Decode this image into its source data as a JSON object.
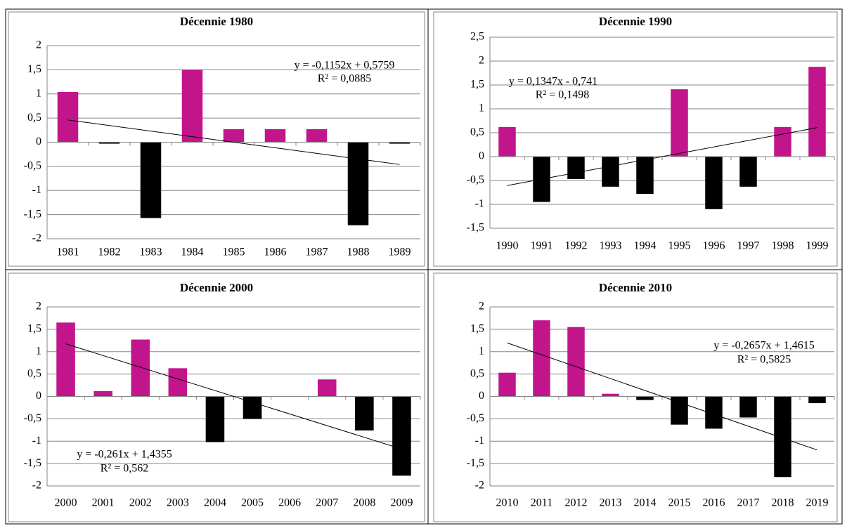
{
  "chart_data": [
    {
      "type": "bar",
      "title": "Décennie 1980",
      "categories": [
        "1981",
        "1982",
        "1983",
        "1984",
        "1985",
        "1986",
        "1987",
        "1988",
        "1989"
      ],
      "values": [
        1.04,
        -0.03,
        -1.57,
        1.5,
        0.27,
        0.27,
        0.27,
        -1.72,
        -0.03
      ],
      "positive_color": "#c2158c",
      "negative_color": "#000000",
      "ylim": [
        -2,
        2
      ],
      "yticks": [
        -2,
        {
          "value": -1.5,
          "label": "-1,5"
        },
        -1,
        {
          "value": -0.5,
          "label": "-0,5"
        },
        0,
        {
          "value": 0.5,
          "label": "0,5"
        },
        1,
        {
          "value": 1.5,
          "label": "1,5"
        },
        2
      ],
      "grid": true,
      "trendline": {
        "slope": -0.1152,
        "intercept": 0.5759,
        "equation": "y = -0,1152x + 0,5759",
        "r2": "R² = 0,0885"
      }
    },
    {
      "type": "bar",
      "title": "Décennie 1990",
      "categories": [
        "1990",
        "1991",
        "1992",
        "1993",
        "1994",
        "1995",
        "1996",
        "1997",
        "1998",
        "1999"
      ],
      "values": [
        0.62,
        -0.95,
        -0.47,
        -0.63,
        -0.78,
        1.41,
        -1.1,
        -0.63,
        0.62,
        1.88
      ],
      "positive_color": "#c2158c",
      "negative_color": "#000000",
      "ylim": [
        -1.5,
        2.5
      ],
      "yticks": [
        {
          "value": -1.5,
          "label": "-1,5"
        },
        -1,
        {
          "value": -0.5,
          "label": "-0,5"
        },
        0,
        {
          "value": 0.5,
          "label": "0,5"
        },
        1,
        {
          "value": 1.5,
          "label": "1,5"
        },
        2,
        {
          "value": 2.5,
          "label": "2,5"
        }
      ],
      "grid": true,
      "trendline": {
        "slope": 0.1347,
        "intercept": -0.741,
        "equation": "y = 0,1347x - 0,741",
        "r2": "R² = 0,1498"
      }
    },
    {
      "type": "bar",
      "title": "Décennie 2000",
      "categories": [
        "2000",
        "2001",
        "2002",
        "2003",
        "2004",
        "2005",
        "2006",
        "2007",
        "2008",
        "2009"
      ],
      "values": [
        1.65,
        0.12,
        1.27,
        0.63,
        -1.02,
        -0.5,
        0,
        0.38,
        -0.76,
        -1.77
      ],
      "positive_color": "#c2158c",
      "negative_color": "#000000",
      "ylim": [
        -2,
        2
      ],
      "yticks": [
        -2,
        {
          "value": -1.5,
          "label": "-1,5"
        },
        -1,
        {
          "value": -0.5,
          "label": "-0,5"
        },
        0,
        {
          "value": 0.5,
          "label": "0,5"
        },
        1,
        {
          "value": 1.5,
          "label": "1,5"
        },
        2
      ],
      "grid": true,
      "trendline": {
        "slope": -0.261,
        "intercept": 1.4355,
        "equation": "y = -0,261x + 1,4355",
        "r2": "R² = 0,562"
      }
    },
    {
      "type": "bar",
      "title": "Décennie 2010",
      "categories": [
        "2010",
        "2011",
        "2012",
        "2013",
        "2014",
        "2015",
        "2016",
        "2017",
        "2018",
        "2019"
      ],
      "values": [
        0.53,
        1.7,
        1.55,
        0.06,
        -0.08,
        -0.63,
        -0.72,
        -0.47,
        -1.8,
        -0.15
      ],
      "positive_color": "#c2158c",
      "negative_color": "#000000",
      "ylim": [
        -2,
        2
      ],
      "yticks": [
        -2,
        {
          "value": -1.5,
          "label": "-1,5"
        },
        -1,
        {
          "value": -0.5,
          "label": "-0,5"
        },
        0,
        {
          "value": 0.5,
          "label": "0,5"
        },
        1,
        {
          "value": 1.5,
          "label": "1,5"
        },
        2
      ],
      "grid": true,
      "trendline": {
        "slope": -0.2657,
        "intercept": 1.4615,
        "equation": "y = -0,2657x + 1,4615",
        "r2": "R² = 0,5825"
      }
    }
  ]
}
